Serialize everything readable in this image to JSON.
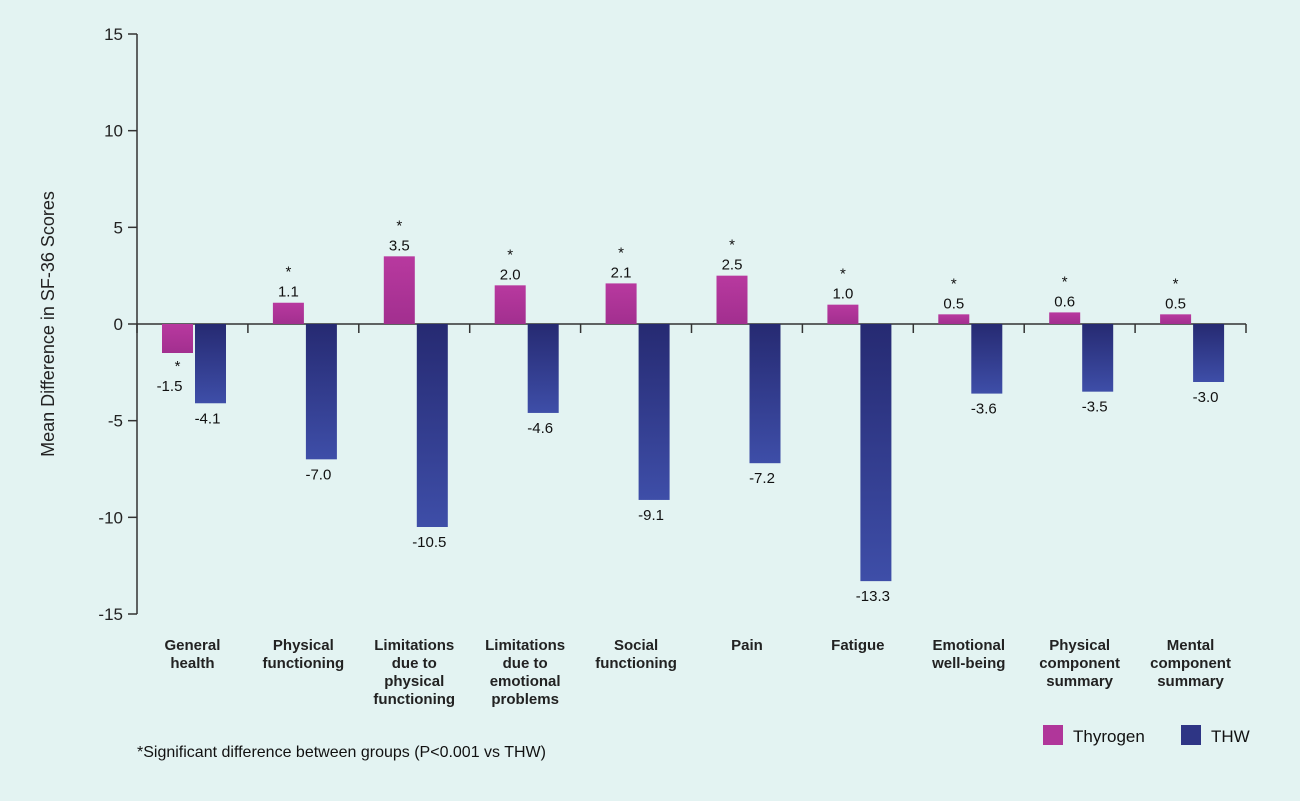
{
  "chart_data": {
    "type": "bar",
    "ylabel": "Mean Difference in SF-36 Scores",
    "ylim": [
      -15,
      15
    ],
    "yticks": [
      15,
      10,
      5,
      0,
      -5,
      -10,
      -15
    ],
    "categories": [
      [
        "General",
        "health"
      ],
      [
        "Physical",
        "functioning"
      ],
      [
        "Limitations",
        "due to",
        "physical",
        "functioning"
      ],
      [
        "Limitations",
        "due to",
        "emotional",
        "problems"
      ],
      [
        "Social",
        "functioning"
      ],
      [
        "Pain"
      ],
      [
        "Fatigue"
      ],
      [
        "Emotional",
        "well-being"
      ],
      [
        "Physical",
        "component",
        "summary"
      ],
      [
        "Mental",
        "component",
        "summary"
      ]
    ],
    "series": [
      {
        "name": "Thyrogen",
        "color": "#b0369a",
        "values": [
          -1.5,
          1.1,
          3.5,
          2.0,
          2.1,
          2.5,
          1.0,
          0.5,
          0.6,
          0.5
        ],
        "labels": [
          "-1.5",
          "1.1",
          "3.5",
          "2.0",
          "2.1",
          "2.5",
          "1.0",
          "0.5",
          "0.6",
          "0.5"
        ],
        "significant": [
          true,
          true,
          true,
          true,
          true,
          true,
          true,
          true,
          true,
          true
        ]
      },
      {
        "name": "THW",
        "color": "#2e3585",
        "values": [
          -4.1,
          -7.0,
          -10.5,
          -4.6,
          -9.1,
          -7.2,
          -13.3,
          -3.6,
          -3.5,
          -3.0
        ],
        "labels": [
          "-4.1",
          "-7.0",
          "-10.5",
          "-4.6",
          "-9.1",
          "-7.2",
          "-13.3",
          "-3.6",
          "-3.5",
          "-3.0"
        ]
      }
    ],
    "significance_marker": "*",
    "footnote": "*Significant difference between groups (P<0.001 vs THW)",
    "legend_position": "bottom-right"
  }
}
